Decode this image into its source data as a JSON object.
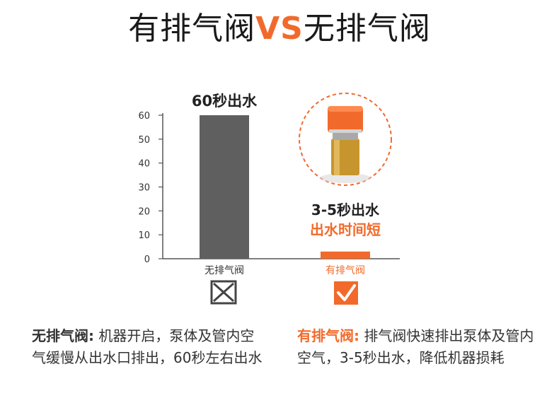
{
  "title": {
    "left": "有排气阀",
    "vs": "VS",
    "right": "无排气阀"
  },
  "chart_data": {
    "type": "bar",
    "categories": [
      "无排气阀",
      "有排气阀"
    ],
    "values": [
      60,
      3
    ],
    "ylim": [
      0,
      60
    ],
    "yticks": [
      0,
      10,
      20,
      30,
      40,
      50,
      60
    ],
    "colors": [
      "#5f5f5f",
      "#f26a2b"
    ],
    "annotations": {
      "bar0": "60秒出水",
      "bar1_line1": "3-5秒出水",
      "bar1_line2": "出水时间短"
    }
  },
  "markers": {
    "left": "cross-box-icon",
    "right": "check-box-icon"
  },
  "colors": {
    "accent": "#f26a2b",
    "dark": "#5f5f5f"
  },
  "notes": {
    "left_label": "无排气阀:",
    "left_text": " 机器开启，泵体及管内空气缓慢从出水口排出，60秒左右出水",
    "right_label": "有排气阀:",
    "right_text": " 排气阀快速排出泵体及管内空气，3-5秒出水，降低机器损耗"
  }
}
